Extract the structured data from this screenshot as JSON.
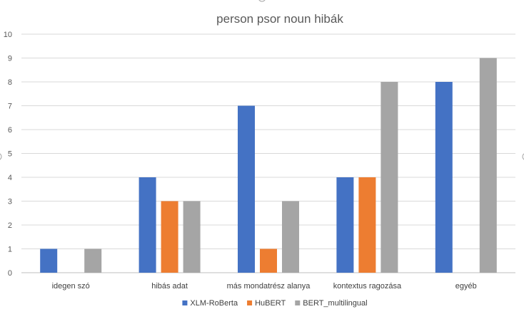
{
  "chart_data": {
    "type": "bar",
    "title": "person psor noun hibák",
    "categories": [
      "idegen szó",
      "hibás adat",
      "más mondatrész alanya",
      "kontextus ragozása",
      "egyéb"
    ],
    "series": [
      {
        "name": "XLM-RoBerta",
        "color": "#4472c4",
        "values": [
          1,
          4,
          7,
          4,
          8
        ]
      },
      {
        "name": "HuBERT",
        "color": "#ed7d31",
        "values": [
          0,
          3,
          1,
          4,
          0
        ]
      },
      {
        "name": "BERT_multilingual",
        "color": "#a5a5a5",
        "values": [
          1,
          3,
          3,
          8,
          9
        ]
      }
    ],
    "ylim": [
      0,
      10
    ],
    "yticks": [
      0,
      1,
      2,
      3,
      4,
      5,
      6,
      7,
      8,
      9,
      10
    ],
    "grid": true,
    "legend_position": "bottom"
  }
}
